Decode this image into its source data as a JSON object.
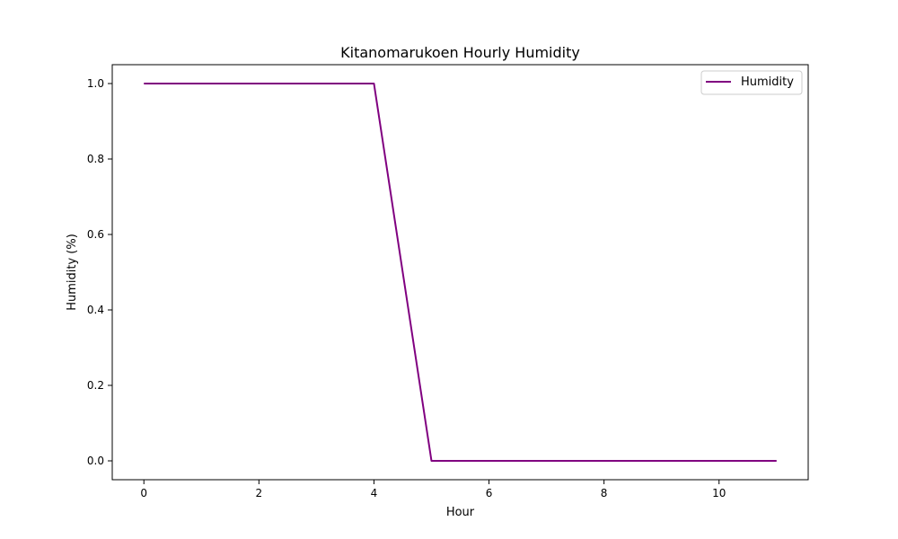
{
  "chart_data": {
    "type": "line",
    "title": "Kitanomarukoen Hourly Humidity",
    "xlabel": "Hour",
    "ylabel": "Humidity (%)",
    "x": [
      0,
      1,
      2,
      3,
      4,
      5,
      6,
      7,
      8,
      9,
      10,
      11
    ],
    "series": [
      {
        "name": "Humidity",
        "color": "#800080",
        "values": [
          1.0,
          1.0,
          1.0,
          1.0,
          1.0,
          0.0,
          0.0,
          0.0,
          0.0,
          0.0,
          0.0,
          0.0
        ]
      }
    ],
    "xlim": [
      -0.55,
      11.55
    ],
    "ylim": [
      -0.05,
      1.05
    ],
    "xticks": [
      0,
      2,
      4,
      6,
      8,
      10
    ],
    "xtick_labels": [
      "0",
      "2",
      "4",
      "6",
      "8",
      "10"
    ],
    "yticks": [
      0.0,
      0.2,
      0.4,
      0.6,
      0.8,
      1.0
    ],
    "ytick_labels": [
      "0.0",
      "0.2",
      "0.4",
      "0.6",
      "0.8",
      "1.0"
    ],
    "grid": false,
    "legend_position": "top-right"
  }
}
